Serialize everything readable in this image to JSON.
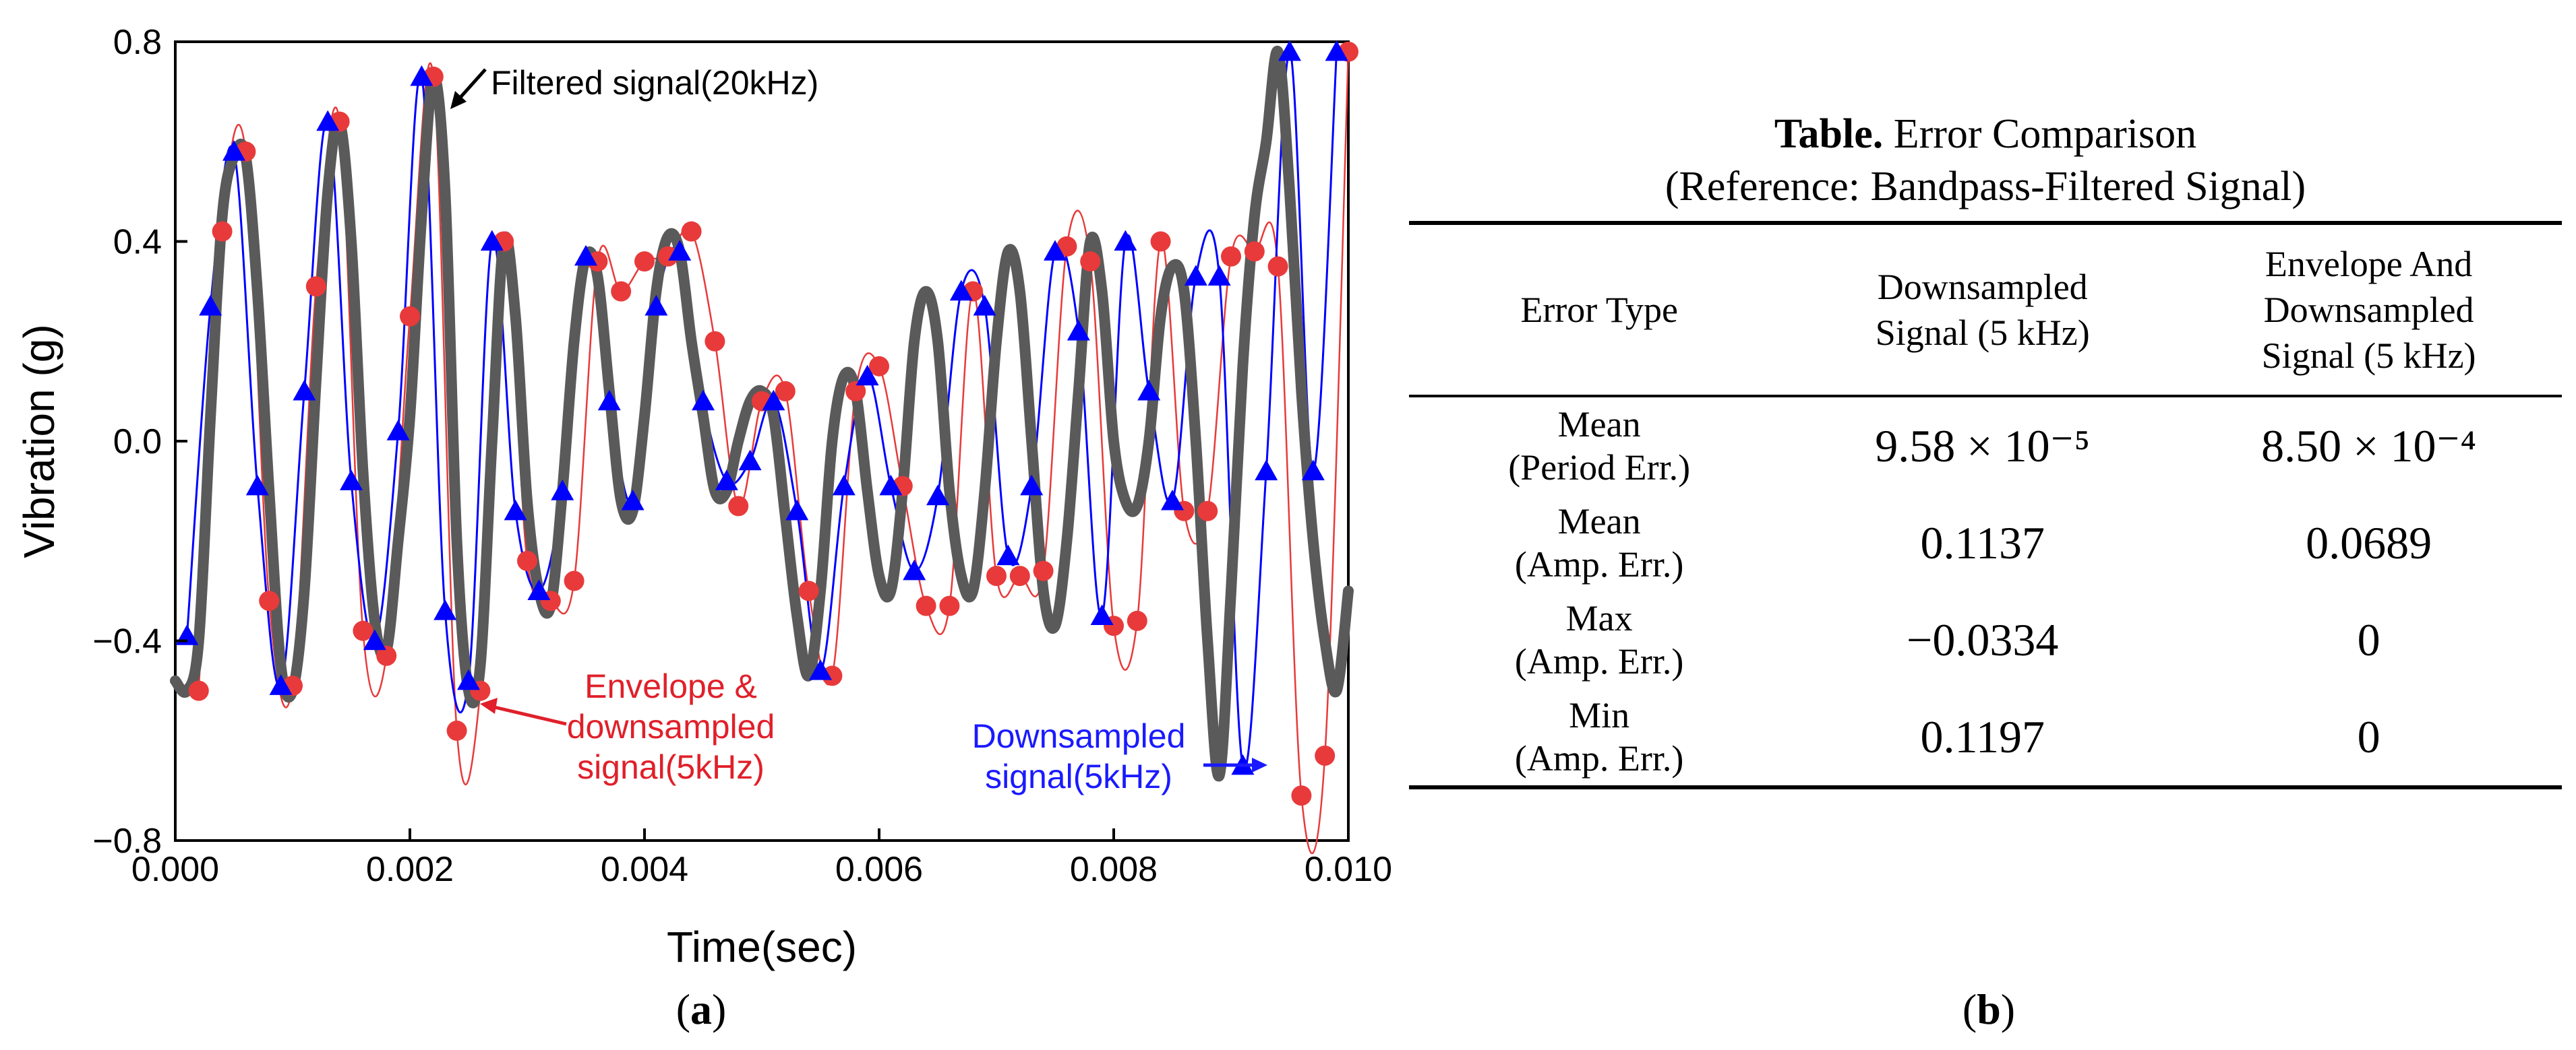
{
  "panel_a": {
    "caption_label": "a",
    "chart_data": {
      "type": "line",
      "title": "",
      "xlabel": "Time(sec)",
      "ylabel": "Vibration (g)",
      "xlim": [
        0.0,
        0.01
      ],
      "ylim": [
        -0.8,
        0.8
      ],
      "x_ticks": [
        "0.000",
        "0.002",
        "0.004",
        "0.006",
        "0.008",
        "0.010"
      ],
      "y_ticks": [
        "−0.8",
        "−0.4",
        "0.0",
        "0.4",
        "0.8"
      ],
      "series": [
        {
          "name": "Filtered signal(20kHz)",
          "color": "#5a5a5a",
          "style": "thick line",
          "x": [
            0.0,
            0.0001,
            0.0002,
            0.0003,
            0.0004,
            0.0005,
            0.0006,
            0.0007,
            0.0008,
            0.0009,
            0.001,
            0.0011,
            0.0012,
            0.0013,
            0.0014,
            0.0015,
            0.0016,
            0.0017,
            0.0018,
            0.0019,
            0.002,
            0.0021,
            0.0022,
            0.0023,
            0.0024,
            0.0025,
            0.0026,
            0.0027,
            0.0028,
            0.0029,
            0.003,
            0.0031,
            0.0032,
            0.0033,
            0.0034,
            0.0035,
            0.0036,
            0.0037,
            0.0038,
            0.0039,
            0.004,
            0.0041,
            0.0042,
            0.0043,
            0.0044,
            0.0045,
            0.0046,
            0.0047,
            0.0048,
            0.0049,
            0.005,
            0.0051,
            0.0052,
            0.0053,
            0.0054,
            0.0055,
            0.0056,
            0.0057,
            0.0058,
            0.0059,
            0.006,
            0.0061,
            0.0062,
            0.0063,
            0.0064,
            0.0065,
            0.0066,
            0.0067,
            0.0068,
            0.0069,
            0.007,
            0.0071,
            0.0072,
            0.0073,
            0.0074,
            0.0075,
            0.0076,
            0.0077,
            0.0078,
            0.0079,
            0.008,
            0.0081,
            0.0082,
            0.0083,
            0.0084,
            0.0085,
            0.0086,
            0.0087,
            0.0088,
            0.0089,
            0.009,
            0.0091,
            0.0092,
            0.0093,
            0.0094,
            0.0095,
            0.0096,
            0.0097,
            0.0098,
            0.0099,
            0.01
          ],
          "values": [
            -0.48,
            -0.5,
            -0.4,
            0.05,
            0.45,
            0.57,
            0.57,
            0.3,
            -0.1,
            -0.45,
            -0.5,
            -0.3,
            0.12,
            0.5,
            0.64,
            0.4,
            -0.06,
            -0.36,
            -0.42,
            -0.2,
            0.05,
            0.45,
            0.73,
            0.5,
            -0.2,
            -0.5,
            -0.45,
            0.0,
            0.4,
            0.25,
            -0.12,
            -0.3,
            -0.33,
            -0.1,
            0.2,
            0.37,
            0.33,
            0.1,
            -0.12,
            -0.14,
            0.05,
            0.3,
            0.41,
            0.38,
            0.2,
            0.05,
            -0.1,
            -0.1,
            0.0,
            0.08,
            0.1,
            0.05,
            -0.15,
            -0.35,
            -0.47,
            -0.3,
            0.0,
            0.13,
            0.1,
            -0.1,
            -0.27,
            -0.3,
            -0.1,
            0.2,
            0.3,
            0.2,
            -0.1,
            -0.27,
            -0.3,
            -0.1,
            0.2,
            0.38,
            0.3,
            0.0,
            -0.3,
            -0.37,
            -0.2,
            0.1,
            0.4,
            0.3,
            0.0,
            -0.12,
            -0.13,
            0.0,
            0.25,
            0.35,
            0.3,
            0.0,
            -0.4,
            -0.67,
            -0.3,
            0.15,
            0.45,
            0.6,
            0.78,
            0.5,
            0.1,
            -0.2,
            -0.4,
            -0.5,
            -0.3
          ]
        },
        {
          "name": "Downsampled signal(5kHz)",
          "color": "#0000ff",
          "marker": "triangle",
          "x": [
            0.0001,
            0.0003,
            0.0005,
            0.0007,
            0.0009,
            0.0011,
            0.0013,
            0.0015,
            0.0017,
            0.0019,
            0.0021,
            0.0023,
            0.0025,
            0.0027,
            0.0029,
            0.0031,
            0.0033,
            0.0035,
            0.0037,
            0.0039,
            0.0041,
            0.0043,
            0.0045,
            0.0047,
            0.0049,
            0.0051,
            0.0053,
            0.0055,
            0.0057,
            0.0059,
            0.0061,
            0.0063,
            0.0065,
            0.0067,
            0.0069,
            0.0071,
            0.0073,
            0.0075,
            0.0077,
            0.0079,
            0.0081,
            0.0083,
            0.0085,
            0.0087,
            0.0089,
            0.0091,
            0.0093,
            0.0095,
            0.0097,
            0.0099
          ],
          "values": [
            -0.39,
            0.27,
            0.58,
            -0.09,
            -0.49,
            0.1,
            0.64,
            -0.08,
            -0.4,
            0.02,
            0.73,
            -0.34,
            -0.48,
            0.4,
            -0.14,
            -0.3,
            -0.1,
            0.37,
            0.08,
            -0.12,
            0.27,
            0.38,
            0.08,
            -0.08,
            -0.04,
            0.08,
            -0.14,
            -0.46,
            -0.09,
            0.13,
            -0.09,
            -0.26,
            -0.11,
            0.3,
            0.27,
            -0.23,
            -0.09,
            0.38,
            0.22,
            -0.35,
            0.4,
            0.1,
            -0.12,
            0.33,
            0.33,
            -0.65,
            -0.06,
            0.78,
            -0.06,
            0.78
          ]
        },
        {
          "name": "Envelope & downsampled signal(5kHz)",
          "color": "#e83a3a",
          "marker": "circle",
          "x": [
            0.0002,
            0.0004,
            0.0006,
            0.0008,
            0.001,
            0.0012,
            0.0014,
            0.0016,
            0.0018,
            0.002,
            0.0022,
            0.0024,
            0.0026,
            0.0028,
            0.003,
            0.0032,
            0.0034,
            0.0036,
            0.0038,
            0.004,
            0.0042,
            0.0044,
            0.0046,
            0.0048,
            0.005,
            0.0052,
            0.0054,
            0.0056,
            0.0058,
            0.006,
            0.0062,
            0.0064,
            0.0066,
            0.0068,
            0.007,
            0.0072,
            0.0074,
            0.0076,
            0.0078,
            0.008,
            0.0082,
            0.0084,
            0.0086,
            0.0088,
            0.009,
            0.0092,
            0.0094,
            0.0096,
            0.0098,
            0.01
          ],
          "values": [
            -0.5,
            0.42,
            0.58,
            -0.32,
            -0.49,
            0.31,
            0.64,
            -0.38,
            -0.43,
            0.25,
            0.73,
            -0.58,
            -0.5,
            0.4,
            -0.24,
            -0.32,
            -0.28,
            0.36,
            0.3,
            0.36,
            0.37,
            0.42,
            0.2,
            -0.13,
            0.08,
            0.1,
            -0.3,
            -0.47,
            0.1,
            0.15,
            -0.09,
            -0.33,
            -0.33,
            0.3,
            -0.27,
            -0.27,
            -0.26,
            0.39,
            0.36,
            -0.37,
            -0.36,
            0.4,
            -0.14,
            -0.14,
            0.37,
            0.38,
            0.35,
            -0.71,
            -0.63,
            0.78
          ]
        }
      ],
      "annotations": [
        {
          "text": "Filtered signal(20kHz)",
          "color": "#000000"
        },
        {
          "text_lines": [
            "Envelope &",
            "downsampled",
            "signal(5kHz)"
          ],
          "color": "#e0202a"
        },
        {
          "text_lines": [
            "Downsampled",
            "signal(5kHz)"
          ],
          "color": "#1a1aff"
        }
      ]
    }
  },
  "panel_b": {
    "caption_label": "b",
    "table_title": {
      "bold": "Table.",
      "rest": " Error Comparison",
      "line2": "(Reference: Bandpass-Filtered Signal)"
    },
    "headers": {
      "col1": "Error Type",
      "col2_lines": [
        "Downsampled",
        "Signal (5 kHz)"
      ],
      "col3_lines": [
        "Envelope And",
        "Downsampled",
        "Signal (5 kHz)"
      ]
    },
    "rows": [
      {
        "type_lines": [
          "Mean",
          "(Period Err.)"
        ],
        "downsampled": "9.58 × 10⁻⁵",
        "envelope": "8.50 × 10⁻⁴"
      },
      {
        "type_lines": [
          "Mean",
          "(Amp. Err.)"
        ],
        "downsampled": "0.1137",
        "envelope": "0.0689"
      },
      {
        "type_lines": [
          "Max",
          "(Amp. Err.)"
        ],
        "downsampled": "−0.0334",
        "envelope": "0"
      },
      {
        "type_lines": [
          "Min",
          "(Amp. Err.)"
        ],
        "downsampled": "0.1197",
        "envelope": "0"
      }
    ]
  }
}
